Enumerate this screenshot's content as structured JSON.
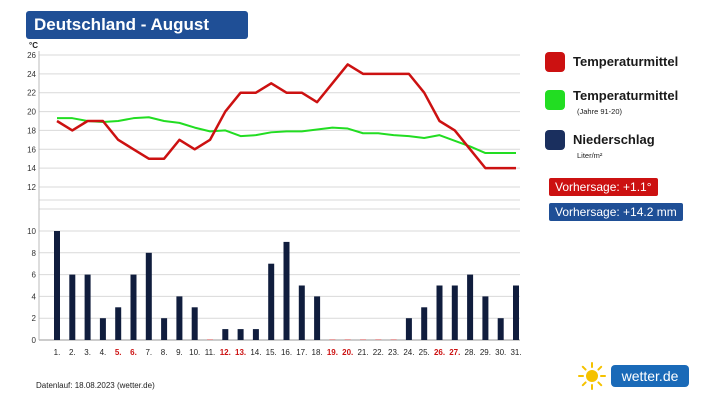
{
  "title": "Deutschland - August",
  "legend": {
    "items": [
      {
        "label": "Temperaturmittel",
        "sub": "",
        "color": "#cc1111"
      },
      {
        "label": "Temperaturmittel",
        "sub": "(Jahre 91-20)",
        "color": "#22dd22"
      },
      {
        "label": "Niederschlag",
        "sub": "Liter/m²",
        "color": "#1a2f5e"
      }
    ]
  },
  "badges": {
    "temperature": {
      "text": "Vorhersage: +1.1°",
      "color": "#cc1111"
    },
    "precipitation": {
      "text": "Vorhersage: +14.2 mm",
      "color": "#1f4f96"
    }
  },
  "footer": "Datenlauf: 18.08.2023 (wetter.de)",
  "logo": {
    "text": "wetter.de",
    "icon": "sun-icon"
  },
  "chart_data": {
    "type": "line+bar",
    "temp_unit": "°C",
    "categories": [
      "1.",
      "2.",
      "3.",
      "4.",
      "5.",
      "6.",
      "7.",
      "8.",
      "9.",
      "10.",
      "11.",
      "12.",
      "13.",
      "14.",
      "15.",
      "16.",
      "17.",
      "18.",
      "19.",
      "20.",
      "21.",
      "22.",
      "23.",
      "24.",
      "25.",
      "26.",
      "27.",
      "28.",
      "29.",
      "30.",
      "31."
    ],
    "weekend_days": [
      5,
      6,
      12,
      13,
      19,
      20,
      26,
      27
    ],
    "weekend_color": "#cc1111",
    "temp_axis": {
      "min": 12,
      "max": 26,
      "ticks": [
        12,
        14,
        16,
        18,
        20,
        22,
        24,
        26
      ]
    },
    "precip_axis": {
      "min": 0,
      "max": 10,
      "ticks": [
        0,
        2,
        4,
        6,
        8,
        10
      ]
    },
    "series": [
      {
        "name": "Temperaturmittel",
        "type": "line",
        "color": "#cc1111",
        "values": [
          19,
          18,
          19,
          19,
          17,
          16,
          15,
          15,
          17,
          16,
          17,
          20,
          22,
          22,
          23,
          22,
          22,
          21,
          23,
          25,
          24,
          24,
          24,
          24,
          22,
          19,
          18,
          16,
          14,
          14,
          14
        ]
      },
      {
        "name": "Temperaturmittel (Jahre 91-20)",
        "type": "line",
        "color": "#22dd22",
        "values": [
          19.3,
          19.3,
          19.0,
          18.9,
          19.0,
          19.3,
          19.4,
          19.0,
          18.8,
          18.3,
          17.9,
          18.0,
          17.4,
          17.5,
          17.8,
          17.9,
          17.9,
          18.1,
          18.3,
          18.2,
          17.7,
          17.7,
          17.5,
          17.4,
          17.2,
          17.5,
          16.9,
          16.3,
          15.6,
          15.6,
          15.6
        ]
      },
      {
        "name": "Niederschlag",
        "type": "bar",
        "color": "#101d3d",
        "values": [
          10,
          6,
          6,
          2,
          3,
          6,
          8,
          2,
          4,
          3,
          0,
          1,
          1,
          1,
          7,
          9,
          5,
          4,
          0,
          0,
          0,
          0,
          0,
          2,
          3,
          5,
          5,
          6,
          4,
          2,
          5
        ]
      }
    ]
  }
}
